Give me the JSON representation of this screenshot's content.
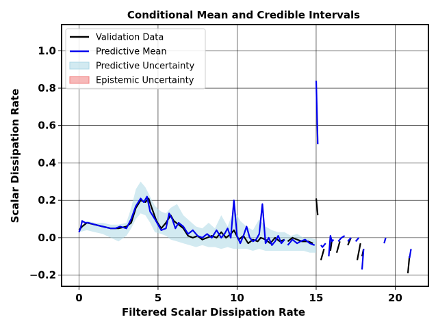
{
  "chart_data": {
    "type": "line",
    "title": "Conditional Mean and Credible Intervals",
    "xlabel": "Filtered Scalar Dissipation Rate",
    "ylabel": "Scalar Dissipation Rate",
    "xlim": [
      -1.1,
      22.1
    ],
    "ylim": [
      -0.26,
      1.14
    ],
    "xticks": [
      0,
      5,
      10,
      15,
      20
    ],
    "xtick_labels": [
      "0",
      "5",
      "10",
      "15",
      "20"
    ],
    "yticks": [
      -0.2,
      0.0,
      0.2,
      0.4,
      0.6,
      0.8,
      1.0
    ],
    "ytick_labels": [
      "−0.2",
      "0.0",
      "0.2",
      "0.4",
      "0.6",
      "0.8",
      "1.0"
    ],
    "grid": true,
    "legend_position": "top-left",
    "colors": {
      "validation": "#000000",
      "predictive_mean": "#0000ee",
      "predictive_uncertainty": "#add8e6",
      "epistemic_uncertainty": "#f08080"
    },
    "legend": [
      {
        "label": "Validation Data",
        "kind": "line",
        "color": "#000000"
      },
      {
        "label": "Predictive Mean",
        "kind": "line",
        "color": "#0000ee"
      },
      {
        "label": "Predictive Uncertainty",
        "kind": "patch",
        "color": "#add8e6"
      },
      {
        "label": "Epistemic Uncertainty",
        "kind": "patch",
        "color": "#f08080"
      }
    ],
    "band": {
      "x": [
        0.0,
        0.5,
        1.0,
        1.5,
        2.0,
        2.5,
        3.0,
        3.3,
        3.6,
        3.9,
        4.2,
        4.5,
        4.8,
        5.2,
        5.5,
        5.8,
        6.2,
        6.6,
        7.0,
        7.4,
        7.8,
        8.2,
        8.6,
        9.0,
        9.4,
        9.8,
        10.2,
        10.6,
        11.0,
        11.4,
        11.8,
        12.2,
        12.6,
        13.0,
        13.4,
        13.8,
        14.2,
        14.6,
        15.0
      ],
      "upper": [
        0.05,
        0.09,
        0.08,
        0.08,
        0.07,
        0.07,
        0.08,
        0.16,
        0.26,
        0.3,
        0.27,
        0.22,
        0.17,
        0.14,
        0.13,
        0.16,
        0.18,
        0.12,
        0.09,
        0.06,
        0.05,
        0.08,
        0.05,
        0.12,
        0.06,
        0.15,
        0.09,
        0.06,
        0.04,
        0.1,
        0.06,
        0.04,
        0.03,
        0.03,
        0.01,
        0.02,
        0.0,
        0.0,
        -0.01
      ],
      "lower": [
        0.03,
        0.04,
        0.03,
        0.02,
        0.0,
        -0.02,
        0.01,
        0.05,
        0.1,
        0.13,
        0.12,
        0.08,
        0.03,
        0.02,
        0.01,
        -0.01,
        -0.02,
        -0.03,
        -0.04,
        -0.05,
        -0.04,
        -0.05,
        -0.05,
        -0.06,
        -0.05,
        -0.06,
        -0.06,
        -0.06,
        -0.07,
        -0.06,
        -0.07,
        -0.07,
        -0.07,
        -0.07,
        -0.07,
        -0.07,
        -0.07,
        -0.08,
        -0.08
      ]
    },
    "series": [
      {
        "name": "Validation Data",
        "color": "#000000",
        "segments": [
          {
            "x": [
              0.0,
              0.2,
              0.5,
              1.0,
              1.5,
              2.0,
              2.5,
              3.0,
              3.3,
              3.6,
              3.9,
              4.2,
              4.4,
              4.6,
              4.9,
              5.2,
              5.5,
              5.8,
              6.0,
              6.3,
              6.6,
              6.9,
              7.2,
              7.5,
              7.8,
              8.1,
              8.4,
              8.7,
              9.0,
              9.3,
              9.6,
              9.8,
              10.1,
              10.4,
              10.7,
              11.0,
              11.3,
              11.5,
              11.8,
              12.1,
              12.4,
              12.7,
              13.0
            ],
            "y": [
              0.04,
              0.06,
              0.08,
              0.07,
              0.06,
              0.05,
              0.05,
              0.06,
              0.08,
              0.16,
              0.2,
              0.19,
              0.21,
              0.16,
              0.09,
              0.05,
              0.08,
              0.12,
              0.09,
              0.07,
              0.05,
              0.01,
              0.0,
              0.01,
              -0.01,
              0.0,
              0.01,
              0.0,
              0.03,
              0.0,
              0.02,
              0.04,
              -0.01,
              0.01,
              -0.03,
              -0.01,
              -0.02,
              0.0,
              -0.01,
              -0.03,
              0.0,
              -0.02,
              -0.01
            ]
          },
          {
            "x": [
              13.2,
              13.5,
              13.8,
              14.1,
              14.5,
              14.8
            ],
            "y": [
              -0.02,
              0.0,
              -0.01,
              -0.02,
              -0.02,
              -0.03
            ]
          },
          {
            "x": [
              15.0,
              15.1
            ],
            "y": [
              0.21,
              0.12
            ]
          },
          {
            "x": [
              15.3,
              15.5
            ],
            "y": [
              -0.12,
              -0.06
            ]
          },
          {
            "x": [
              15.9,
              16.0
            ],
            "y": [
              -0.07,
              -0.01
            ]
          },
          {
            "x": [
              16.3,
              16.5
            ],
            "y": [
              -0.08,
              -0.02
            ]
          },
          {
            "x": [
              17.0,
              17.2
            ],
            "y": [
              -0.04,
              0.0
            ]
          },
          {
            "x": [
              17.6,
              17.8
            ],
            "y": [
              -0.12,
              -0.03
            ]
          },
          {
            "x": [
              17.9,
              18.0
            ],
            "y": [
              -0.1,
              -0.06
            ]
          },
          {
            "x": [
              20.8,
              20.9
            ],
            "y": [
              -0.19,
              -0.1
            ]
          }
        ]
      },
      {
        "name": "Predictive Mean",
        "color": "#0000ee",
        "segments": [
          {
            "x": [
              0.0,
              0.1,
              0.2,
              0.4,
              0.6,
              1.0,
              1.5,
              2.0,
              2.3,
              2.6,
              3.0,
              3.3,
              3.6,
              3.9,
              4.1,
              4.3,
              4.5,
              4.8,
              5.0,
              5.2,
              5.5,
              5.7,
              5.9,
              6.1,
              6.3,
              6.6,
              6.9,
              7.2,
              7.5,
              7.8,
              8.1,
              8.4,
              8.7,
              9.0,
              9.2,
              9.4,
              9.6,
              9.8,
              10.0,
              10.2,
              10.4,
              10.6,
              10.8,
              11.0,
              11.2,
              11.4,
              11.6,
              11.8,
              12.0,
              12.2,
              12.4,
              12.6,
              12.8,
              13.0
            ],
            "y": [
              0.03,
              0.05,
              0.09,
              0.08,
              0.08,
              0.07,
              0.06,
              0.05,
              0.05,
              0.06,
              0.05,
              0.1,
              0.17,
              0.21,
              0.19,
              0.22,
              0.14,
              0.1,
              0.07,
              0.04,
              0.05,
              0.13,
              0.1,
              0.05,
              0.08,
              0.06,
              0.02,
              0.04,
              0.01,
              0.0,
              0.02,
              0.0,
              0.04,
              0.0,
              0.02,
              0.05,
              0.0,
              0.2,
              0.01,
              -0.03,
              0.01,
              0.06,
              0.0,
              -0.02,
              -0.01,
              0.02,
              0.18,
              -0.03,
              0.0,
              -0.04,
              -0.02,
              0.01,
              -0.03,
              -0.01
            ]
          },
          {
            "x": [
              13.2,
              13.5,
              13.8,
              14.0,
              14.3,
              14.6,
              14.9
            ],
            "y": [
              -0.04,
              -0.01,
              -0.03,
              -0.02,
              -0.01,
              -0.03,
              -0.04
            ]
          },
          {
            "x": [
              15.0,
              15.1
            ],
            "y": [
              0.84,
              0.5
            ]
          },
          {
            "x": [
              15.3,
              15.4,
              15.6
            ],
            "y": [
              -0.04,
              -0.05,
              -0.03
            ]
          },
          {
            "x": [
              15.8,
              15.9,
              16.0,
              16.1
            ],
            "y": [
              -0.1,
              0.01,
              -0.02,
              -0.01
            ]
          },
          {
            "x": [
              16.4,
              16.6,
              16.8
            ],
            "y": [
              -0.02,
              0.0,
              0.01
            ]
          },
          {
            "x": [
              17.0,
              17.2
            ],
            "y": [
              -0.02,
              0.0
            ]
          },
          {
            "x": [
              17.5,
              17.7
            ],
            "y": [
              -0.02,
              0.0
            ]
          },
          {
            "x": [
              17.9,
              18.0
            ],
            "y": [
              -0.17,
              -0.06
            ]
          },
          {
            "x": [
              19.3,
              19.4
            ],
            "y": [
              -0.03,
              0.0
            ]
          },
          {
            "x": [
              20.9,
              21.0
            ],
            "y": [
              -0.11,
              -0.06
            ]
          }
        ]
      }
    ]
  }
}
